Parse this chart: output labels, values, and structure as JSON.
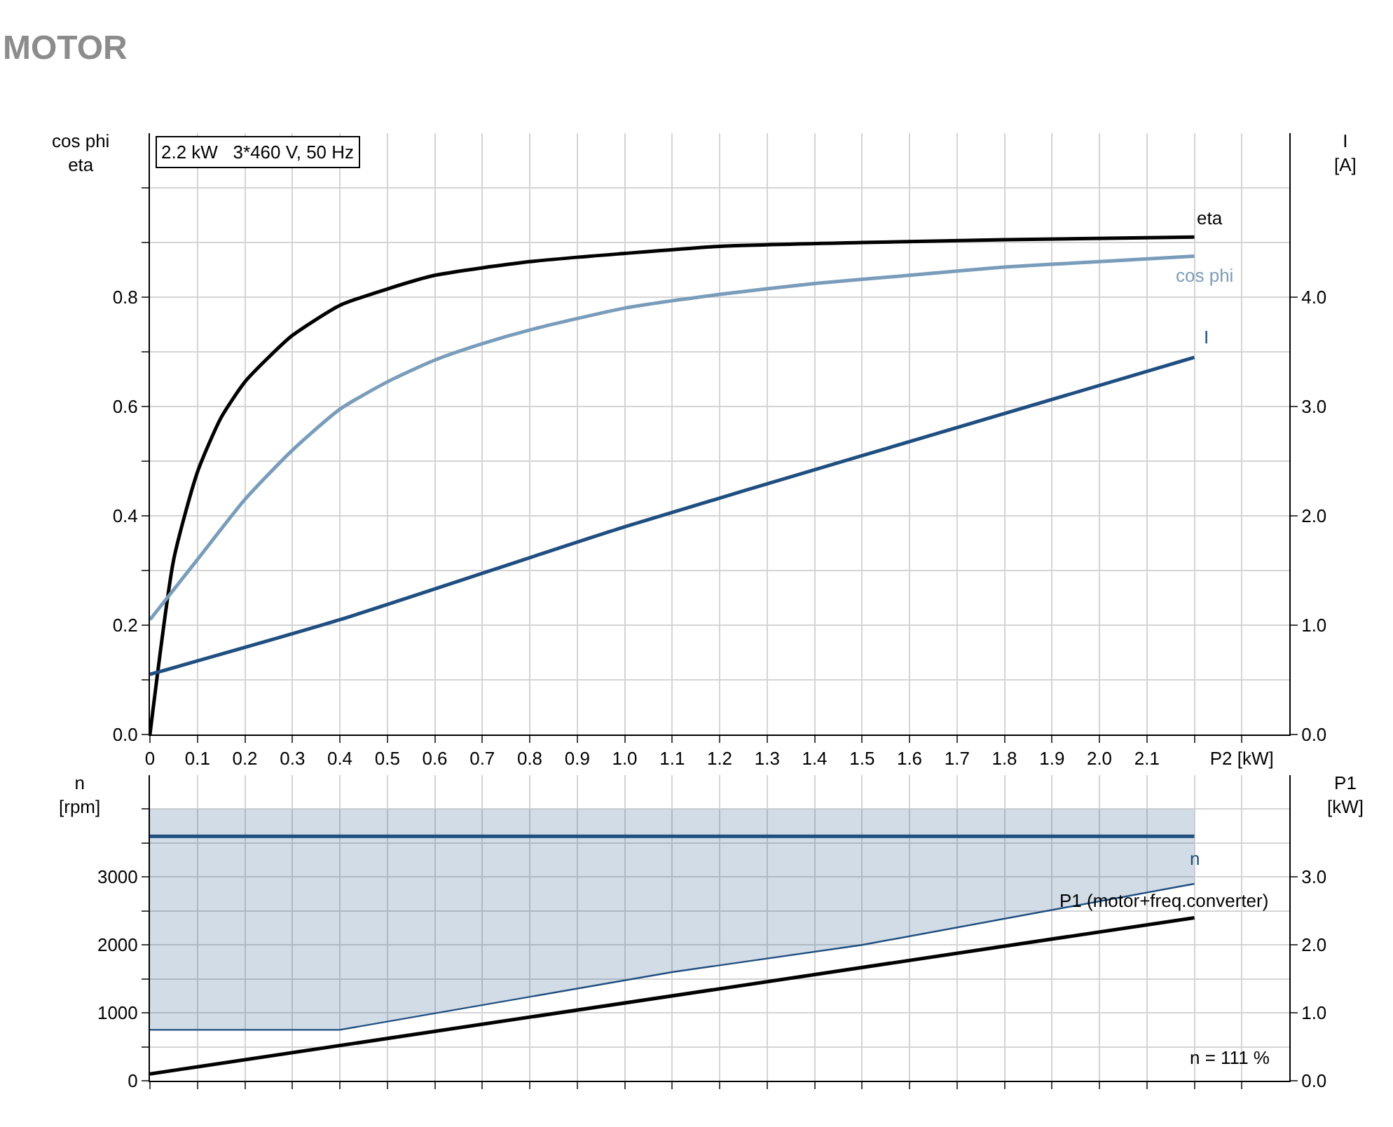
{
  "chart_data": [
    {
      "type": "line",
      "title": "MOTOR",
      "ylabel": "cos phi\neta",
      "y2label": "I\n[A]",
      "annotations": [
        "2.2 kW   3*460 V, 50 Hz"
      ],
      "xlim": [
        0,
        2.4
      ],
      "xticks": [
        0,
        0.1,
        0.2,
        0.3,
        0.4,
        0.5,
        0.6,
        0.7,
        0.8,
        0.9,
        {
          "value": 1.0,
          "label": "1.0"
        },
        1.1,
        1.2,
        1.3,
        1.4,
        1.5,
        1.6,
        1.7,
        1.8,
        1.9,
        {
          "value": 2.0,
          "label": "2.0"
        },
        2.1,
        {
          "value": 2.2,
          "label": null
        },
        {
          "value": 2.3,
          "label": "P2 [kW]"
        }
      ],
      "ylim": [
        0,
        1.1
      ],
      "yticks": [
        {
          "value": 0,
          "label": "0.0"
        },
        {
          "value": 0.1,
          "label": null
        },
        0.2,
        {
          "value": 0.3,
          "label": null
        },
        0.4,
        {
          "value": 0.5,
          "label": null
        },
        0.6,
        {
          "value": 0.7,
          "label": null
        },
        0.8,
        {
          "value": 0.9,
          "label": null
        },
        {
          "value": 1.0,
          "label": null
        }
      ],
      "y2lim": [
        0,
        5.5
      ],
      "y2ticks": [
        {
          "value": 0,
          "label": "0.0"
        },
        {
          "value": 1,
          "label": "1.0"
        },
        {
          "value": 2,
          "label": "2.0"
        },
        {
          "value": 3,
          "label": "3.0"
        },
        {
          "value": 4,
          "label": "4.0"
        }
      ],
      "grid": true,
      "series": [
        {
          "name": "eta",
          "color": "#000000",
          "x": [
            0,
            0.05,
            0.1,
            0.15,
            0.2,
            0.25,
            0.3,
            0.4,
            0.5,
            0.6,
            0.8,
            1.0,
            1.2,
            1.5,
            1.8,
            2.2
          ],
          "values": [
            0,
            0.32,
            0.48,
            0.58,
            0.645,
            0.69,
            0.73,
            0.785,
            0.815,
            0.84,
            0.865,
            0.88,
            0.893,
            0.9,
            0.905,
            0.91
          ]
        },
        {
          "name": "cos phi",
          "color": "#7a9cbb",
          "x": [
            0,
            0.1,
            0.2,
            0.3,
            0.4,
            0.5,
            0.6,
            0.7,
            0.8,
            1.0,
            1.2,
            1.4,
            1.6,
            1.8,
            2.0,
            2.2
          ],
          "values": [
            0.21,
            0.32,
            0.43,
            0.52,
            0.595,
            0.645,
            0.685,
            0.715,
            0.74,
            0.78,
            0.805,
            0.825,
            0.84,
            0.855,
            0.865,
            0.875
          ]
        },
        {
          "name": "I",
          "color": "#1f4e80",
          "axis": "y2",
          "x": [
            0,
            0.4,
            1.0,
            1.5,
            2.2
          ],
          "values": [
            0.55,
            1.05,
            1.9,
            2.55,
            3.45
          ]
        }
      ]
    },
    {
      "type": "line",
      "ylabel": "n\n[rpm]",
      "y2label": "P1\n[kW]",
      "annotations": [
        "n = 111 %"
      ],
      "xlim": [
        0,
        2.4
      ],
      "xticks": [
        {
          "value": 0,
          "label": null
        },
        {
          "value": 0.1,
          "label": null
        },
        {
          "value": 0.2,
          "label": null
        },
        {
          "value": 0.3,
          "label": null
        },
        {
          "value": 0.4,
          "label": null
        },
        {
          "value": 0.5,
          "label": null
        },
        {
          "value": 0.6,
          "label": null
        },
        {
          "value": 0.7,
          "label": null
        },
        {
          "value": 0.8,
          "label": null
        },
        {
          "value": 0.9,
          "label": null
        },
        {
          "value": 1.0,
          "label": null
        },
        {
          "value": 1.1,
          "label": null
        },
        {
          "value": 1.2,
          "label": null
        },
        {
          "value": 1.3,
          "label": null
        },
        {
          "value": 1.4,
          "label": null
        },
        {
          "value": 1.5,
          "label": null
        },
        {
          "value": 1.6,
          "label": null
        },
        {
          "value": 1.7,
          "label": null
        },
        {
          "value": 1.8,
          "label": null
        },
        {
          "value": 1.9,
          "label": null
        },
        {
          "value": 2.0,
          "label": null
        },
        {
          "value": 2.1,
          "label": null
        },
        {
          "value": 2.2,
          "label": null
        },
        {
          "value": 2.3,
          "label": null
        }
      ],
      "ylim": [
        0,
        4500
      ],
      "yticks": [
        0,
        {
          "value": 500,
          "label": null
        },
        1000,
        {
          "value": 1500,
          "label": null
        },
        2000,
        {
          "value": 2500,
          "label": null
        },
        3000,
        {
          "value": 3500,
          "label": null
        },
        {
          "value": 4000,
          "label": null
        }
      ],
      "y2lim": [
        0,
        4.5
      ],
      "y2ticks": [
        {
          "value": 0,
          "label": "0.0"
        },
        {
          "value": 1,
          "label": "1.0"
        },
        {
          "value": 2,
          "label": "2.0"
        },
        {
          "value": 3,
          "label": "3.0"
        }
      ],
      "tick_labels": "y",
      "grid": true,
      "series": [
        {
          "name": "n",
          "color": "#1f4e80",
          "x": [
            0,
            0.4,
            1.1,
            1.5,
            2.2
          ],
          "values": [
            3600,
            3600,
            3600,
            3600,
            3600
          ],
          "lower": [
            750,
            750,
            1600,
            2000,
            2900
          ],
          "upper": [
            4000,
            4000,
            4000,
            4000,
            4000
          ]
        },
        {
          "name": "P1 (motor+freq.converter)",
          "color": "#000000",
          "axis": "y2",
          "x": [
            0,
            2.2
          ],
          "values": [
            0.1,
            2.4
          ]
        }
      ]
    }
  ]
}
